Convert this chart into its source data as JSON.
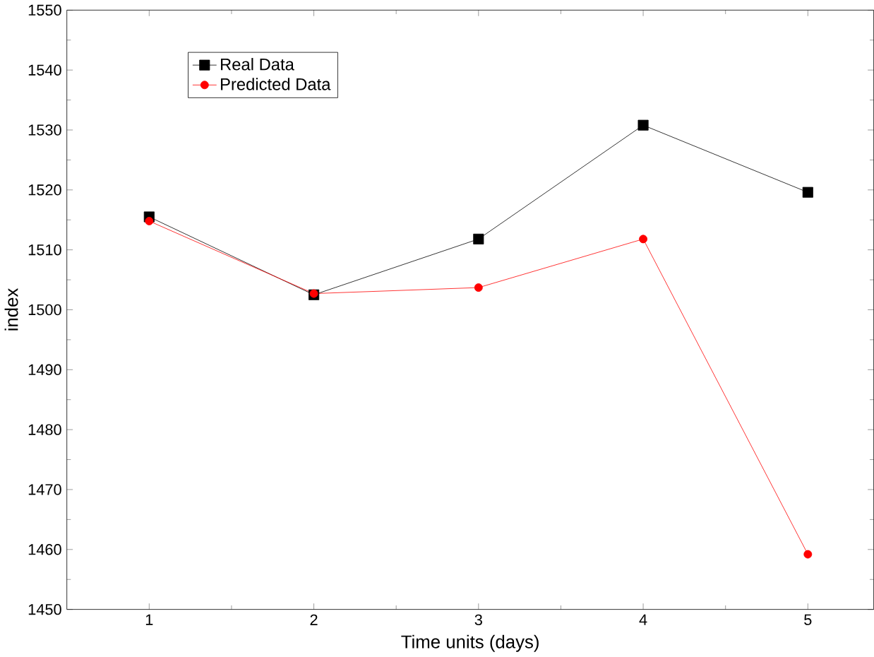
{
  "chart_data": {
    "type": "line",
    "xlabel": "Time units (days)",
    "ylabel": "index",
    "x": [
      1,
      2,
      3,
      4,
      5
    ],
    "series": [
      {
        "name": "Real Data",
        "color": "#000000",
        "marker": "square",
        "values": [
          1515.5,
          1502.5,
          1511.8,
          1530.8,
          1519.6
        ]
      },
      {
        "name": "Predicted Data",
        "color": "#ff0000",
        "marker": "circle",
        "values": [
          1514.8,
          1502.7,
          1503.7,
          1511.8,
          1459.2
        ]
      }
    ],
    "xlim": [
      0.5,
      5.4
    ],
    "ylim": [
      1450,
      1550
    ],
    "xticks": [
      1,
      2,
      3,
      4,
      5
    ],
    "yticks": [
      1450,
      1460,
      1470,
      1480,
      1490,
      1500,
      1510,
      1520,
      1530,
      1540,
      1550
    ],
    "grid": false,
    "legend": "top left"
  }
}
